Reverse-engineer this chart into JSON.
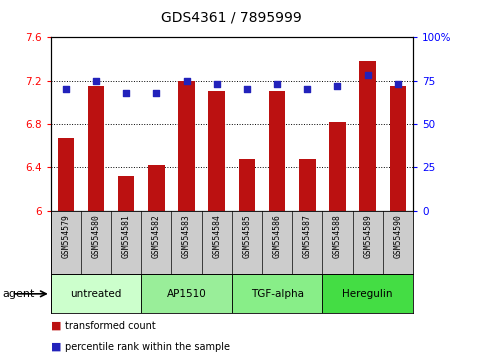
{
  "title": "GDS4361 / 7895999",
  "samples": [
    "GSM554579",
    "GSM554580",
    "GSM554581",
    "GSM554582",
    "GSM554583",
    "GSM554584",
    "GSM554585",
    "GSM554586",
    "GSM554587",
    "GSM554588",
    "GSM554589",
    "GSM554590"
  ],
  "bar_values": [
    6.67,
    7.15,
    6.32,
    6.42,
    7.2,
    7.1,
    6.48,
    7.1,
    6.48,
    6.82,
    7.38,
    7.15
  ],
  "dot_values": [
    70,
    75,
    68,
    68,
    75,
    73,
    70,
    73,
    70,
    72,
    78,
    73
  ],
  "ylim_left": [
    6.0,
    7.6
  ],
  "ylim_right": [
    0,
    100
  ],
  "yticks_left": [
    6.0,
    6.4,
    6.8,
    7.2,
    7.6
  ],
  "ytick_labels_left": [
    "6",
    "6.4",
    "6.8",
    "7.2",
    "7.6"
  ],
  "yticks_right": [
    0,
    25,
    50,
    75,
    100
  ],
  "ytick_labels_right": [
    "0",
    "25",
    "50",
    "75",
    "100%"
  ],
  "bar_color": "#bb1111",
  "dot_color": "#2222bb",
  "agent_groups": [
    {
      "label": "untreated",
      "indices": [
        0,
        1,
        2
      ],
      "color": "#ccffcc"
    },
    {
      "label": "AP1510",
      "indices": [
        3,
        4,
        5
      ],
      "color": "#99ee99"
    },
    {
      "label": "TGF-alpha",
      "indices": [
        6,
        7,
        8
      ],
      "color": "#88ee88"
    },
    {
      "label": "Heregulin",
      "indices": [
        9,
        10,
        11
      ],
      "color": "#44dd44"
    }
  ],
  "agent_label": "agent",
  "legend_bar_label": "transformed count",
  "legend_dot_label": "percentile rank within the sample",
  "title_fontsize": 10,
  "bar_width": 0.55,
  "sample_bg": "#cccccc"
}
